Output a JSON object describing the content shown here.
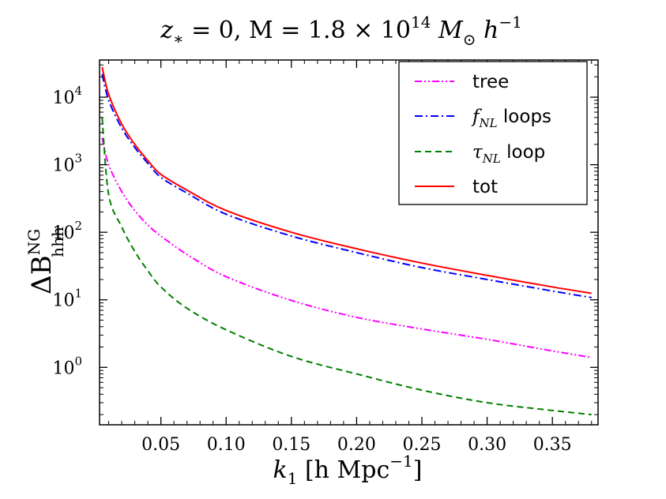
{
  "chart_data": {
    "type": "line",
    "title": {
      "prefix": "z",
      "sub": "∗",
      "mid": " = 0,  M = 1.8 × 10",
      "sup": "14",
      "unit": " M",
      "unit_sub": "⊙",
      "h": " h",
      "h_sup": "−1"
    },
    "xlabel": {
      "main": "k",
      "sub": "1",
      "rest": " [h Mpc",
      "sup": "−1",
      "close": "]"
    },
    "ylabel": {
      "main": "ΔB",
      "sup": "NG",
      "sub": "hhh"
    },
    "xlim": [
      0.003,
      0.385
    ],
    "ylim_log10": [
      -0.85,
      4.55
    ],
    "xticks": [
      {
        "value": 0.05,
        "label": "0.05"
      },
      {
        "value": 0.1,
        "label": "0.10"
      },
      {
        "value": 0.15,
        "label": "0.15"
      },
      {
        "value": 0.2,
        "label": "0.20"
      },
      {
        "value": 0.25,
        "label": "0.25"
      },
      {
        "value": 0.3,
        "label": "0.30"
      },
      {
        "value": 0.35,
        "label": "0.35"
      }
    ],
    "yticks": [
      {
        "exp": 0,
        "base": "10",
        "sup": "0"
      },
      {
        "exp": 1,
        "base": "10",
        "sup": "1"
      },
      {
        "exp": 2,
        "base": "10",
        "sup": "2"
      },
      {
        "exp": 3,
        "base": "10",
        "sup": "3"
      },
      {
        "exp": 4,
        "base": "10",
        "sup": "4"
      }
    ],
    "legend": {
      "position": "top-right",
      "entries": [
        {
          "series": "tree",
          "text": "tree"
        },
        {
          "series": "fNL",
          "math": "f",
          "sub": "NL",
          "text": " loops"
        },
        {
          "series": "tauNL",
          "math": "τ",
          "sub": "NL",
          "text": " loop"
        },
        {
          "series": "tot",
          "text": "tot"
        }
      ]
    },
    "series": [
      {
        "name": "tree",
        "color": "#ff00ff",
        "dash": "dashdotdot",
        "x": [
          0.005,
          0.01,
          0.02,
          0.03,
          0.04,
          0.05,
          0.07,
          0.1,
          0.15,
          0.2,
          0.25,
          0.3,
          0.35,
          0.38
        ],
        "y": [
          2500,
          1000,
          400,
          210,
          128,
          88,
          47,
          22,
          9.8,
          5.5,
          3.7,
          2.6,
          1.75,
          1.4
        ]
      },
      {
        "name": "fNL",
        "color": "#0000ff",
        "dash": "dashdot",
        "x": [
          0.005,
          0.01,
          0.02,
          0.03,
          0.04,
          0.05,
          0.07,
          0.1,
          0.15,
          0.2,
          0.25,
          0.3,
          0.35,
          0.38
        ],
        "y": [
          22000,
          9000,
          3500,
          1800,
          1050,
          650,
          380,
          185,
          88,
          50,
          30,
          20,
          13.5,
          10.8
        ]
      },
      {
        "name": "tauNL",
        "color": "#008000",
        "dash": "dashed",
        "x": [
          0.005,
          0.01,
          0.02,
          0.03,
          0.04,
          0.05,
          0.07,
          0.1,
          0.15,
          0.2,
          0.25,
          0.3,
          0.35,
          0.38
        ],
        "y": [
          5000,
          360,
          120,
          52,
          27,
          15.5,
          7.5,
          3.6,
          1.45,
          0.8,
          0.46,
          0.3,
          0.23,
          0.2
        ]
      },
      {
        "name": "tot",
        "color": "#ff0000",
        "dash": "solid",
        "x": [
          0.005,
          0.01,
          0.02,
          0.03,
          0.04,
          0.05,
          0.07,
          0.1,
          0.15,
          0.2,
          0.25,
          0.3,
          0.35,
          0.38
        ],
        "y": [
          28000,
          11000,
          4000,
          2000,
          1150,
          720,
          420,
          210,
          100,
          57,
          35,
          23,
          15.5,
          12.5
        ]
      }
    ]
  }
}
